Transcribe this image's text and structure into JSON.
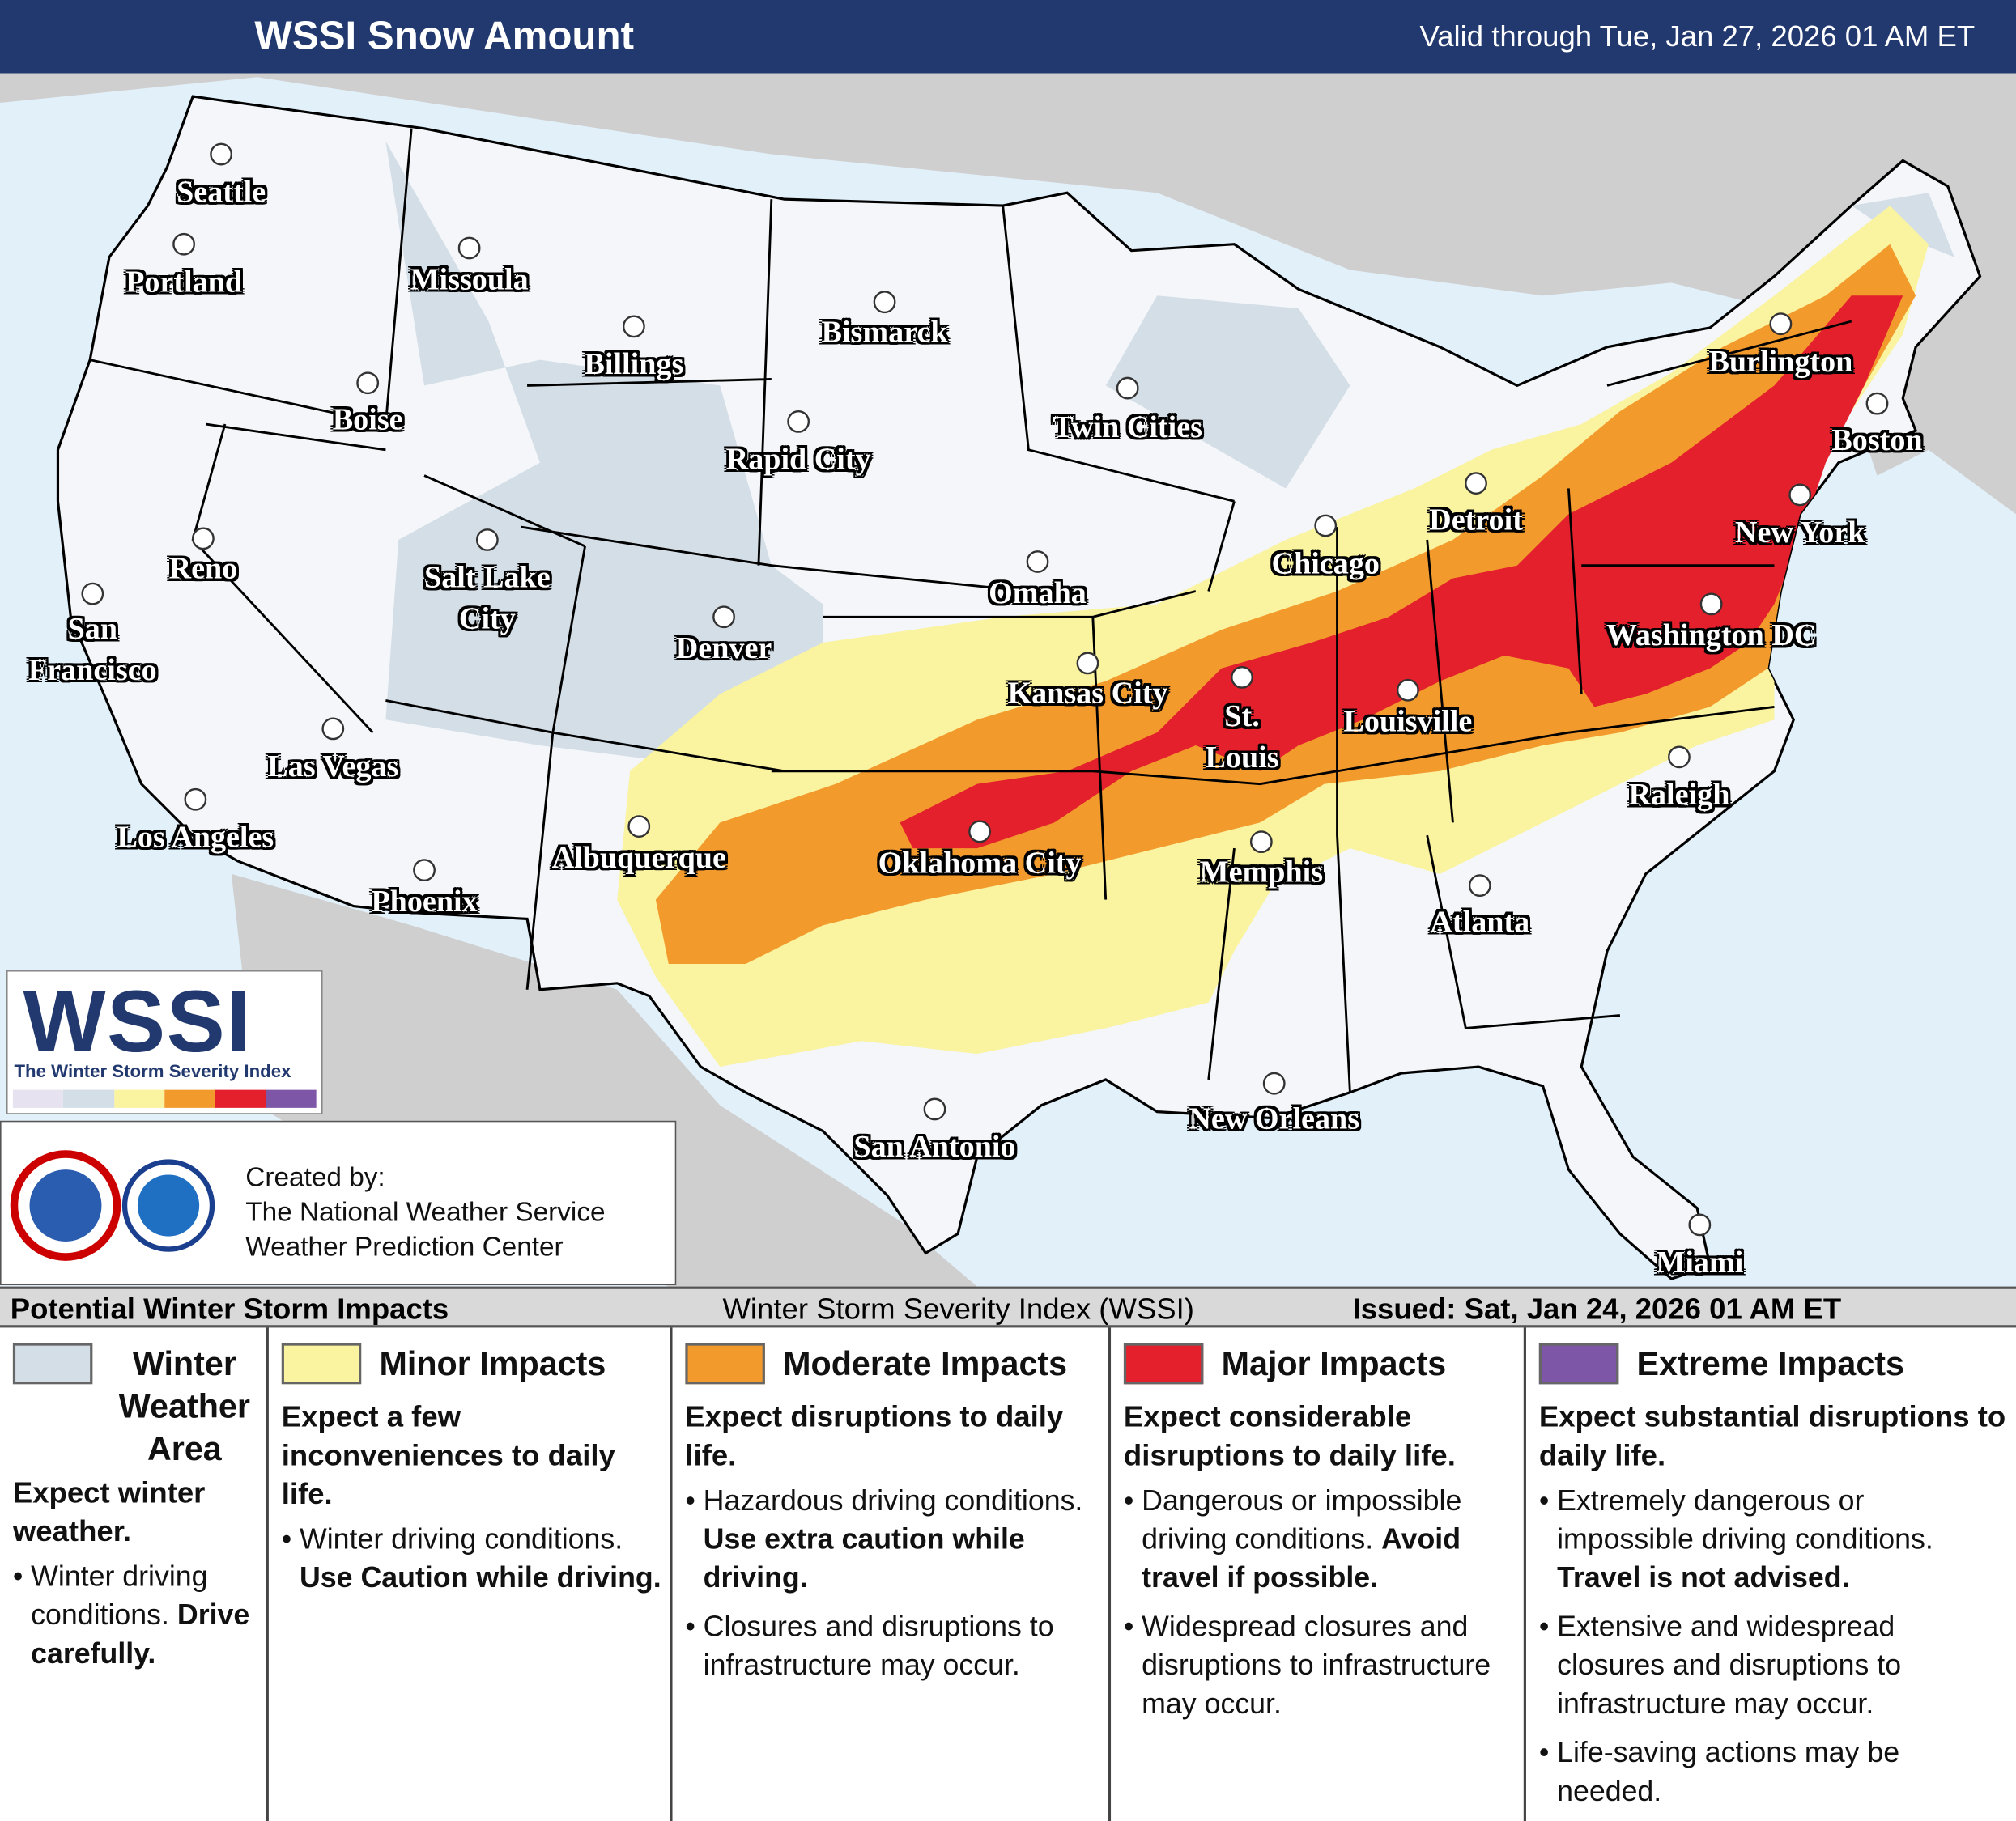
{
  "header": {
    "title": "WSSI Snow Amount",
    "valid": "Valid through Tue, Jan 27, 2026 01 AM ET"
  },
  "cities": [
    "Seattle",
    "Portland",
    "Missoula",
    "Billings",
    "Bismarck",
    "Boise",
    "Twin Cities",
    "Rapid City",
    "Burlington",
    "Boston",
    "Detroit",
    "Reno",
    "Salt Lake City",
    "Chicago",
    "New York",
    "Omaha",
    "San Francisco",
    "Denver",
    "Washington DC",
    "Kansas City",
    "St. Louis",
    "Louisville",
    "Las Vegas",
    "Raleigh",
    "Los Angeles",
    "Albuquerque",
    "Oklahoma City",
    "Memphis",
    "Phoenix",
    "Atlanta",
    "New Orleans",
    "San Antonio",
    "Miami"
  ],
  "logo": {
    "name": "WSSI",
    "tagline": "The Winter Storm Severity Index"
  },
  "credits": {
    "intro": "Created by:",
    "lines": [
      "The National Weather Service",
      "Weather Prediction Center"
    ]
  },
  "legend": {
    "title": "Potential Winter Storm Impacts",
    "subtitle": "Winter Storm Severity Index (WSSI)",
    "issued": "Issued: Sat, Jan 24, 2026 01 AM ET",
    "categories": [
      {
        "name": "Winter Weather Area",
        "color": "#d3dee7",
        "summary": "Expect winter weather.",
        "bullets": [
          {
            "text": "Winter driving conditions.",
            "emphasis": "Drive carefully."
          }
        ]
      },
      {
        "name": "Minor Impacts",
        "color": "#faf3a0",
        "summary": "Expect a few inconveniences to daily life.",
        "bullets": [
          {
            "text": "Winter driving conditions.",
            "emphasis": "Use Caution while driving."
          }
        ]
      },
      {
        "name": "Moderate Impacts",
        "color": "#f39a2d",
        "summary": "Expect disruptions to daily life.",
        "bullets": [
          {
            "text": "Hazardous driving conditions.",
            "emphasis": "Use extra caution while driving."
          },
          {
            "text": "Closures and disruptions to infrastructure may occur."
          }
        ]
      },
      {
        "name": "Major Impacts",
        "color": "#e3202c",
        "summary": "Expect considerable disruptions to daily life.",
        "bullets": [
          {
            "text": "Dangerous or impossible driving conditions.",
            "emphasis": "Avoid travel if possible."
          },
          {
            "text": "Widespread closures and disruptions to infrastructure may occur."
          }
        ]
      },
      {
        "name": "Extreme Impacts",
        "color": "#7e56a8",
        "summary": "Expect substantial disruptions to daily life.",
        "bullets": [
          {
            "text": "Extremely dangerous or impossible driving conditions.",
            "emphasis": "Travel is not advised."
          },
          {
            "text": "Extensive and widespread closures and disruptions to infrastructure may occur."
          },
          {
            "text": "Life-saving actions may be needed."
          }
        ]
      }
    ]
  }
}
